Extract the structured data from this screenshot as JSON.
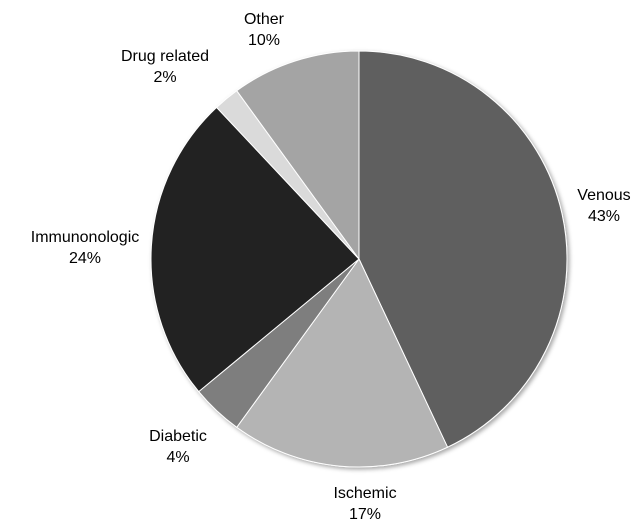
{
  "chart_data": {
    "type": "pie",
    "start_angle_deg": 0,
    "direction": "clockwise",
    "slices": [
      {
        "name": "Venous",
        "label": "Venous",
        "pct_label": "43%",
        "value": 43,
        "color": "#5e5e5e"
      },
      {
        "name": "Ischemic",
        "label": "Ischemic",
        "pct_label": "17%",
        "value": 17,
        "color": "#b4b4b4"
      },
      {
        "name": "Diabetic",
        "label": "Diabetic",
        "pct_label": "4%",
        "value": 4,
        "color": "#7e7e7e"
      },
      {
        "name": "Immunonologic",
        "label": "Immunonologic",
        "pct_label": "24%",
        "value": 24,
        "color": "#222222"
      },
      {
        "name": "Drug related",
        "label": "Drug related",
        "pct_label": "2%",
        "value": 2,
        "color": "#dadada"
      },
      {
        "name": "Other",
        "label": "Other",
        "pct_label": "10%",
        "value": 10,
        "color": "#a4a4a4"
      }
    ],
    "stroke_color": "#ffffff",
    "legend": "none"
  }
}
